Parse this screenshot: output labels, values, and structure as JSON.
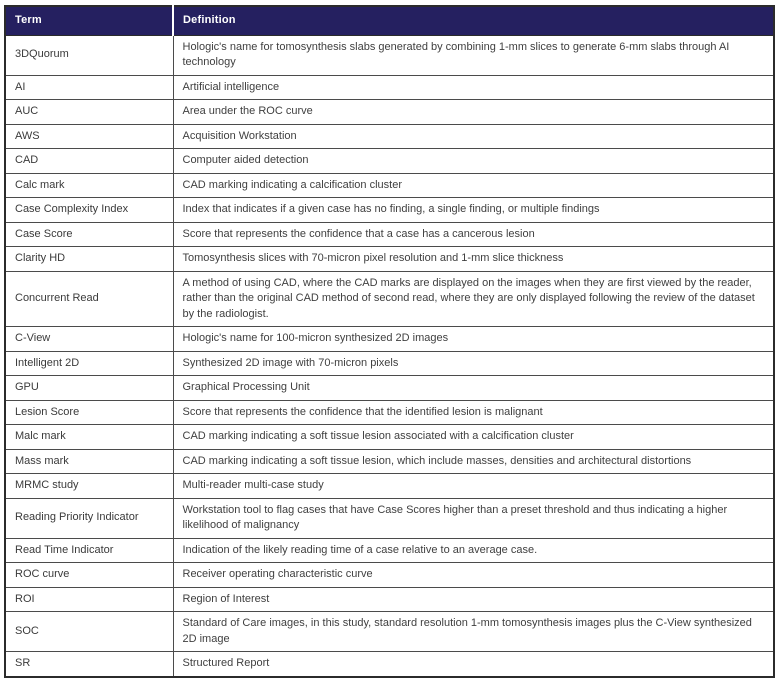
{
  "table": {
    "headers": {
      "term": "Term",
      "definition": "Definition"
    },
    "colors": {
      "header_bg": "#252060",
      "header_text": "#ffffff",
      "body_text": "#3f3f3f",
      "border": "#4b4b4b"
    },
    "rows": [
      {
        "term": "3DQuorum",
        "definition": "Hologic's name for tomosynthesis slabs generated by combining 1-mm slices to generate 6-mm slabs through AI technology"
      },
      {
        "term": "AI",
        "definition": "Artificial intelligence"
      },
      {
        "term": "AUC",
        "definition": "Area under the ROC curve"
      },
      {
        "term": "AWS",
        "definition": "Acquisition Workstation"
      },
      {
        "term": "CAD",
        "definition": "Computer aided detection"
      },
      {
        "term": "Calc mark",
        "definition": "CAD marking indicating a calcification cluster"
      },
      {
        "term": "Case Complexity Index",
        "definition": "Index that indicates if a given case has no finding, a single finding, or multiple findings"
      },
      {
        "term": "Case Score",
        "definition": "Score that represents the confidence that a case has a cancerous lesion"
      },
      {
        "term": "Clarity HD",
        "definition": "Tomosynthesis slices with 70-micron pixel resolution and 1-mm slice thickness"
      },
      {
        "term": "Concurrent Read",
        "definition": "A method of using CAD, where the CAD marks are displayed on the images when they are first viewed by the reader, rather than the original CAD method of second read, where they are only displayed following the review of the dataset by the radiologist."
      },
      {
        "term": "C-View",
        "definition": "Hologic's name for 100-micron synthesized 2D images"
      },
      {
        "term": "Intelligent 2D",
        "definition": "Synthesized 2D image with 70-micron pixels"
      },
      {
        "term": "GPU",
        "definition": "Graphical Processing Unit"
      },
      {
        "term": "Lesion Score",
        "definition": "Score that represents the confidence that the identified lesion is malignant"
      },
      {
        "term": "Malc mark",
        "definition": "CAD marking indicating a soft tissue lesion associated with a calcification cluster"
      },
      {
        "term": "Mass mark",
        "definition": "CAD marking indicating a soft tissue lesion, which include masses, densities and architectural distortions"
      },
      {
        "term": "MRMC study",
        "definition": "Multi-reader multi-case study"
      },
      {
        "term": "Reading Priority Indicator",
        "definition": "Workstation tool to flag cases that have Case Scores higher than a preset threshold and thus indicating a higher likelihood of malignancy"
      },
      {
        "term": "Read Time Indicator",
        "definition": "Indication of the likely reading time of a case relative to an average case."
      },
      {
        "term": "ROC curve",
        "definition": "Receiver operating characteristic curve"
      },
      {
        "term": "ROI",
        "definition": "Region of Interest"
      },
      {
        "term": "SOC",
        "definition": "Standard of Care images, in this study, standard resolution 1-mm tomosynthesis images plus the C-View synthesized 2D image"
      },
      {
        "term": "SR",
        "definition": "Structured Report"
      }
    ]
  }
}
